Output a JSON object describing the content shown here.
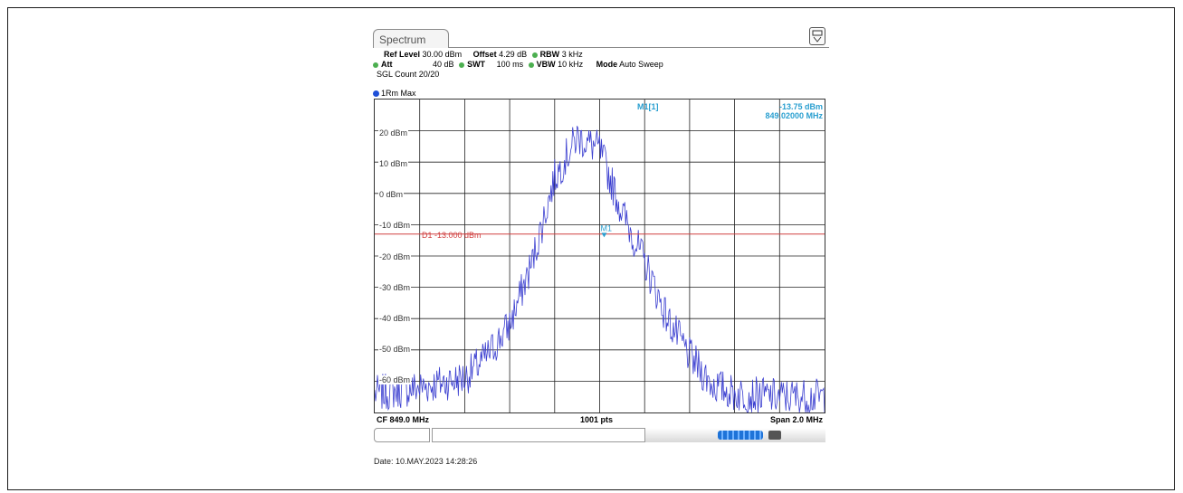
{
  "window": {
    "tab_label": "Spectrum"
  },
  "params": {
    "ref_level_label": "Ref Level",
    "ref_level_value": "30.00 dBm",
    "offset_label": "Offset",
    "offset_value": "4.29 dB",
    "rbw_label": "RBW",
    "rbw_value": "3 kHz",
    "att_label": "Att",
    "att_value": "40 dB",
    "swt_label": "SWT",
    "swt_value": "100 ms",
    "vbw_label": "VBW",
    "vbw_value": "10 kHz",
    "mode_label": "Mode",
    "mode_value": "Auto Sweep",
    "sgl_count": "SGL Count 20/20"
  },
  "trace": {
    "label": "1Rm Max",
    "color": "#3b3fd0"
  },
  "marker": {
    "name": "M1[1]",
    "level": "-13.75 dBm",
    "frequency": "849.02000 MHz",
    "plot_label": "M1",
    "color": "#2a9fd0"
  },
  "display_line": {
    "label": "D1  -13.000 dBm",
    "level": -13,
    "color": "#d04040"
  },
  "axis": {
    "y_labels": [
      "20 dBm",
      "10 dBm",
      "0 dBm",
      "-10 dBm",
      "-20 dBm",
      "-30 dBm",
      "-40 dBm",
      "-50 dBm",
      "-60 dBm"
    ],
    "cf": "CF 849.0 MHz",
    "points": "1001 pts",
    "span": "Span 2.0 MHz"
  },
  "footer": {
    "date": "Date: 10.MAY.2023  14:28:26"
  },
  "chart_data": {
    "type": "line",
    "title": "",
    "xlabel": "",
    "ylabel": "",
    "x_range_mhz": [
      848.0,
      850.0
    ],
    "ylim": [
      -70,
      30
    ],
    "grid": true,
    "series": [
      {
        "name": "1Rm Max",
        "x": [
          848.0,
          848.2,
          848.4,
          848.5,
          848.6,
          848.7,
          848.8,
          848.9,
          849.0,
          849.1,
          849.2,
          849.3,
          849.4,
          849.5,
          849.6,
          849.8,
          850.0
        ],
        "values": [
          -64,
          -62,
          -59,
          -52,
          -42,
          -22,
          5,
          18,
          14,
          -6,
          -22,
          -40,
          -52,
          -61,
          -64,
          -65,
          -65
        ]
      }
    ],
    "display_line": -13,
    "marker": {
      "x": 849.02,
      "y": -13.75
    }
  }
}
